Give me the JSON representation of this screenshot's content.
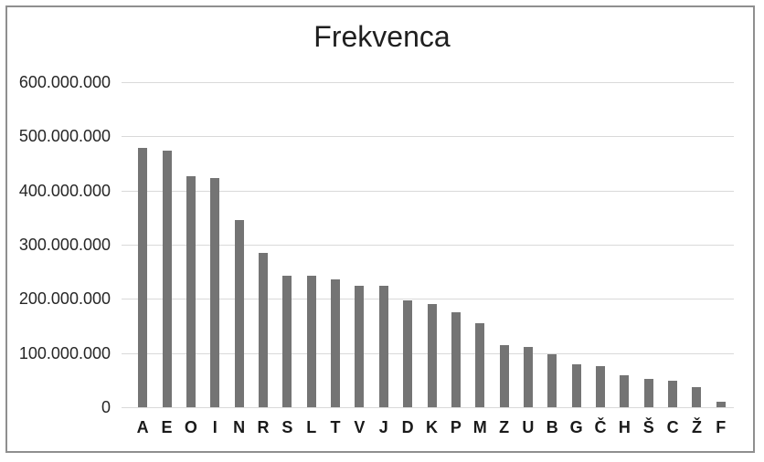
{
  "title": "Frekvenca",
  "colors": {
    "bar": "#747474",
    "gridline": "#d9d9d9",
    "frame_border": "#8f8f8f",
    "title_text": "#1f1f1f",
    "axis_text": "#262626",
    "background": "#ffffff"
  },
  "chart_data": {
    "type": "bar",
    "title": "Frekvenca",
    "xlabel": "",
    "ylabel": "",
    "categories": [
      "A",
      "E",
      "O",
      "I",
      "N",
      "R",
      "S",
      "L",
      "T",
      "V",
      "J",
      "D",
      "K",
      "P",
      "M",
      "Z",
      "U",
      "B",
      "G",
      "Č",
      "H",
      "Š",
      "C",
      "Ž",
      "F"
    ],
    "values": [
      478000000,
      474000000,
      426000000,
      423000000,
      346000000,
      284000000,
      243000000,
      242000000,
      236000000,
      225000000,
      224000000,
      197000000,
      191000000,
      176000000,
      155000000,
      114000000,
      111000000,
      97000000,
      79000000,
      76000000,
      59000000,
      53000000,
      49000000,
      37000000,
      10000000
    ],
    "ylim": [
      0,
      600000000
    ],
    "ytick_labels": [
      "600.000.000",
      "500.000.000",
      "400.000.000",
      "300.000.000",
      "200.000.000",
      "100.000.000",
      "0"
    ],
    "grid": true,
    "legend": false,
    "bar_color": "#747474"
  }
}
